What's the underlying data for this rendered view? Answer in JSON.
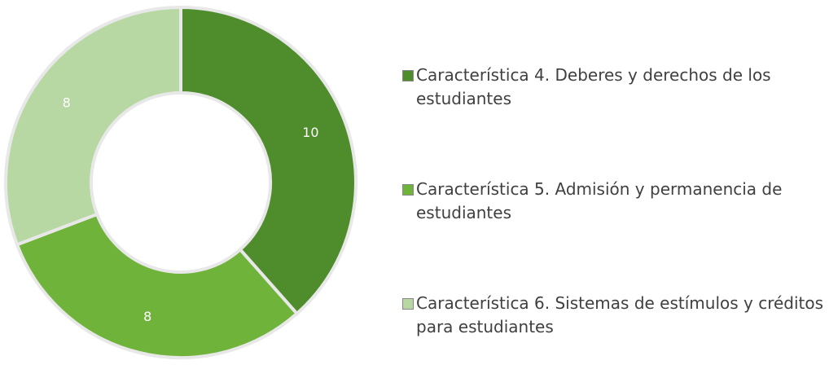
{
  "chart_data": {
    "type": "donut",
    "categories": [
      "Característica 4. Deberes y derechos de los estudiantes",
      "Característica 5. Admisión y permanencia de estudiantes",
      "Característica 6. Sistemas de estímulos y créditos para estudiantes"
    ],
    "values": [
      10,
      8,
      8
    ],
    "colors": [
      "#4f8d2c",
      "#6fb33a",
      "#b7d8a3"
    ],
    "legend": "right"
  }
}
